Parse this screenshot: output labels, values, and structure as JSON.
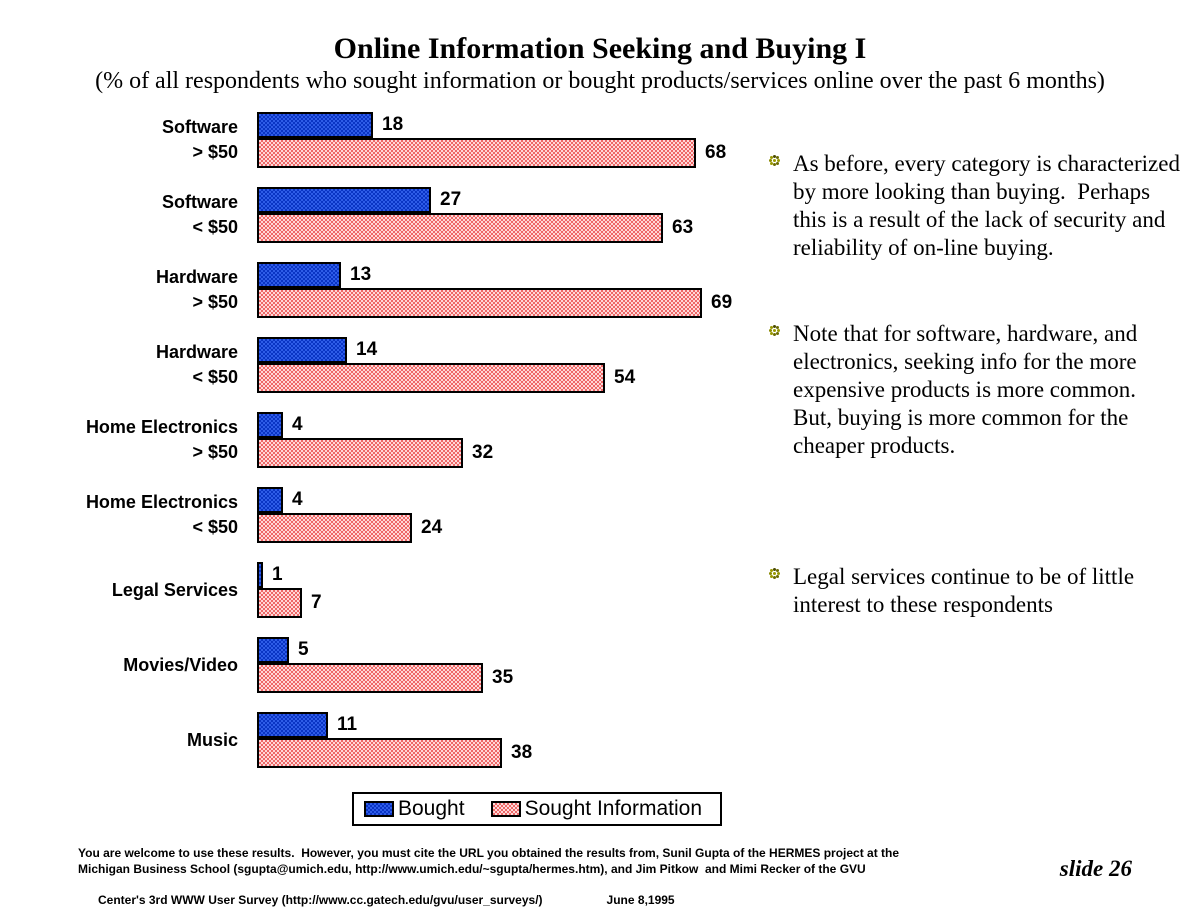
{
  "title": "Online Information Seeking and Buying I",
  "subtitle": "(% of all respondents who sought information or bought products/services online over the past 6 months)",
  "chart_data": {
    "type": "bar",
    "orientation": "horizontal",
    "title": "Online Information Seeking and Buying I",
    "categories": [
      {
        "line1": "Software",
        "line2": "> $50"
      },
      {
        "line1": "Software",
        "line2": "< $50"
      },
      {
        "line1": "Hardware",
        "line2": "> $50"
      },
      {
        "line1": "Hardware",
        "line2": "< $50"
      },
      {
        "line1": "Home Electronics",
        "line2": "> $50"
      },
      {
        "line1": "Home Electronics",
        "line2": "< $50"
      },
      {
        "line1": "Legal Services",
        "line2": ""
      },
      {
        "line1": "Movies/Video",
        "line2": ""
      },
      {
        "line1": "Music",
        "line2": ""
      }
    ],
    "series": [
      {
        "name": "Bought",
        "color": "#1a44d6",
        "values": [
          18,
          27,
          13,
          14,
          4,
          4,
          1,
          5,
          11
        ]
      },
      {
        "name": "Sought Information",
        "color": "#f59c9c",
        "values": [
          68,
          63,
          69,
          54,
          32,
          24,
          7,
          35,
          38
        ]
      }
    ],
    "value_labels": true,
    "xlim": [
      0,
      70
    ],
    "grid": false,
    "legend_position": "bottom-center"
  },
  "bullets": [
    "As before, every category is characterized by more looking than buying.  Perhaps this is a result of the lack of security and reliability of on-line buying.",
    "Note that for software, hardware, and electronics, seeking info for the more expensive products is more common.  But, buying is more common for the cheaper products.",
    "Legal services continue to be of little interest to these respondents"
  ],
  "footer": {
    "lines": [
      "You are welcome to use these results.  However, you must cite the URL you obtained the results from, Sunil Gupta of the HERMES project at the",
      "Michigan Business School (sgupta@umich.edu, http://www.umich.edu/~sgupta/hermes.htm), and Jim Pitkow  and Mimi Recker of the GVU",
      "Center's 3rd WWW User Survey (http://www.cc.gatech.edu/gvu/user_surveys/)"
    ],
    "date": "June 8,1995",
    "slide_label": "slide 26"
  }
}
